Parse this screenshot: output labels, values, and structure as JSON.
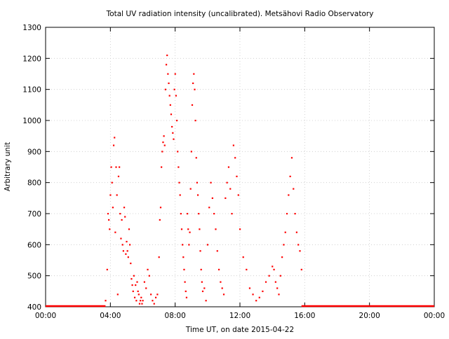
{
  "chart_data": {
    "type": "scatter",
    "title": "Total UV radiation intensity (uncalibrated). Metsähovi Radio Observatory",
    "xlabel": "Time UT, on date 2015-04-22",
    "ylabel": "Arbitrary unit",
    "xlim": [
      0,
      24
    ],
    "ylim": [
      400,
      1300
    ],
    "x_ticks": [
      0,
      4,
      8,
      12,
      16,
      20,
      24
    ],
    "x_tick_labels": [
      "00:00",
      "04:00",
      "08:00",
      "12:00",
      "16:00",
      "20:00",
      "00:00"
    ],
    "y_ticks": [
      400,
      500,
      600,
      700,
      800,
      900,
      1000,
      1100,
      1200,
      1300
    ],
    "y_tick_labels": [
      "400",
      "500",
      "600",
      "700",
      "800",
      "900",
      "1000",
      "1100",
      "1200",
      "1300"
    ],
    "grid": true,
    "series": [
      {
        "color": "#ff0000",
        "marker": "dot",
        "x": [
          3.7,
          3.8,
          3.85,
          3.9,
          3.95,
          4.0,
          4.05,
          4.1,
          4.15,
          4.2,
          4.25,
          4.3,
          4.35,
          4.4,
          4.45,
          4.5,
          4.55,
          4.6,
          4.65,
          4.7,
          4.75,
          4.8,
          4.85,
          4.9,
          4.95,
          5.0,
          5.05,
          5.1,
          5.15,
          5.2,
          5.25,
          5.3,
          5.35,
          5.4,
          5.45,
          5.5,
          5.55,
          5.6,
          5.65,
          5.7,
          5.75,
          5.8,
          5.85,
          5.9,
          5.95,
          6.0,
          6.1,
          6.2,
          6.3,
          6.4,
          6.5,
          6.6,
          6.7,
          6.8,
          6.9,
          7.0,
          7.05,
          7.1,
          7.15,
          7.2,
          7.25,
          7.3,
          7.35,
          7.4,
          7.45,
          7.5,
          7.55,
          7.6,
          7.65,
          7.7,
          7.75,
          7.8,
          7.85,
          7.9,
          7.95,
          8.0,
          8.05,
          8.1,
          8.15,
          8.2,
          8.25,
          8.3,
          8.35,
          8.4,
          8.45,
          8.5,
          8.55,
          8.6,
          8.65,
          8.7,
          8.75,
          8.8,
          8.85,
          8.9,
          8.95,
          9.0,
          9.05,
          9.1,
          9.15,
          9.2,
          9.25,
          9.3,
          9.35,
          9.4,
          9.45,
          9.5,
          9.55,
          9.6,
          9.65,
          9.7,
          9.8,
          9.9,
          10.0,
          10.1,
          10.2,
          10.3,
          10.4,
          10.5,
          10.6,
          10.7,
          10.8,
          10.9,
          11.0,
          11.1,
          11.2,
          11.3,
          11.4,
          11.5,
          11.6,
          11.7,
          11.8,
          11.9,
          12.0,
          12.2,
          12.4,
          12.6,
          12.8,
          13.0,
          13.2,
          13.4,
          13.6,
          13.8,
          14.0,
          14.1,
          14.2,
          14.3,
          14.4,
          14.5,
          14.6,
          14.7,
          14.8,
          14.9,
          15.0,
          15.1,
          15.2,
          15.3,
          15.4,
          15.5,
          15.6,
          15.7,
          15.8
        ],
        "y": [
          420,
          520,
          700,
          680,
          650,
          760,
          850,
          800,
          720,
          920,
          945,
          640,
          850,
          760,
          440,
          820,
          850,
          700,
          620,
          680,
          600,
          580,
          720,
          690,
          570,
          610,
          580,
          560,
          650,
          600,
          540,
          490,
          470,
          450,
          500,
          430,
          470,
          420,
          480,
          450,
          440,
          410,
          420,
          430,
          410,
          420,
          480,
          460,
          520,
          500,
          440,
          420,
          410,
          430,
          440,
          560,
          680,
          720,
          850,
          900,
          930,
          950,
          920,
          1100,
          1180,
          1210,
          1150,
          1120,
          1080,
          1050,
          1020,
          980,
          960,
          940,
          1100,
          1150,
          1080,
          1000,
          900,
          850,
          800,
          760,
          700,
          650,
          600,
          560,
          520,
          480,
          450,
          430,
          700,
          650,
          600,
          640,
          780,
          900,
          1050,
          1120,
          1150,
          1100,
          1000,
          880,
          800,
          760,
          700,
          650,
          580,
          520,
          480,
          450,
          460,
          420,
          600,
          720,
          800,
          750,
          700,
          650,
          580,
          520,
          480,
          460,
          440,
          750,
          800,
          850,
          780,
          700,
          920,
          880,
          820,
          760,
          650,
          560,
          520,
          460,
          440,
          420,
          430,
          450,
          480,
          500,
          530,
          520,
          480,
          460,
          440,
          500,
          560,
          600,
          640,
          700,
          760,
          820,
          880,
          780,
          700,
          640,
          600,
          580,
          520
        ],
        "baseline_start": [
          0,
          3.7
        ],
        "baseline_end": [
          15.8,
          24
        ],
        "baseline_value": 400
      }
    ]
  }
}
